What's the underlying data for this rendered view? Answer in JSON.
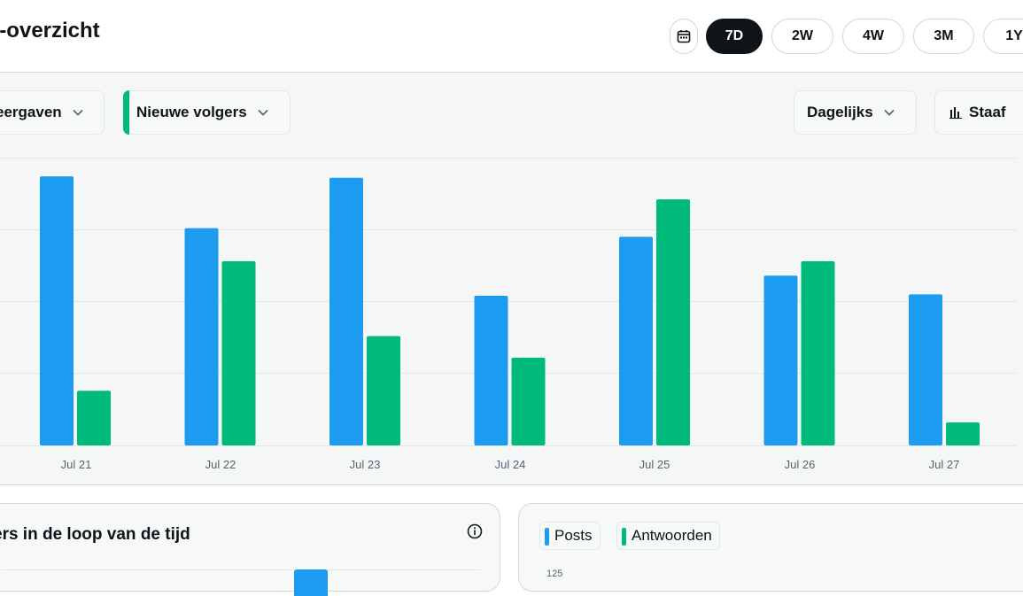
{
  "header": {
    "title": "unt-overzicht",
    "range_options": [
      "7D",
      "2W",
      "4W",
      "3M",
      "1Y"
    ],
    "active_range": "7D"
  },
  "filters": {
    "metric_1": "eergaven",
    "metric_2": "Nieuwe volgers",
    "interval": "Dagelijks",
    "chart_type": "Staaf"
  },
  "colors": {
    "blue": "#1d9bf0",
    "green": "#00ba7c",
    "active_button": "#0f1419"
  },
  "chart_data": {
    "type": "bar",
    "categories": [
      "Jul 21",
      "Jul 22",
      "Jul 23",
      "Jul 24",
      "Jul 25",
      "Jul 26",
      "Jul 27"
    ],
    "series": [
      {
        "name": "eergaven",
        "color": "#1d9bf0",
        "values": [
          93.5,
          75.5,
          93,
          52,
          72.5,
          59,
          52.5
        ]
      },
      {
        "name": "Nieuwe volgers",
        "color": "#00ba7c",
        "values": [
          19,
          64,
          38,
          30.5,
          85.5,
          64,
          8
        ]
      }
    ],
    "ylim": [
      0,
      100
    ],
    "gridlines": 4,
    "title": "",
    "xlabel": "",
    "ylabel": ""
  },
  "bottom_left_card": {
    "title": "ers in de loop van de tijd"
  },
  "bottom_right_card": {
    "legend": [
      {
        "label": "Posts",
        "color": "#1d9bf0"
      },
      {
        "label": "Antwoorden",
        "color": "#00ba7c"
      }
    ],
    "y_first_tick": "125"
  }
}
